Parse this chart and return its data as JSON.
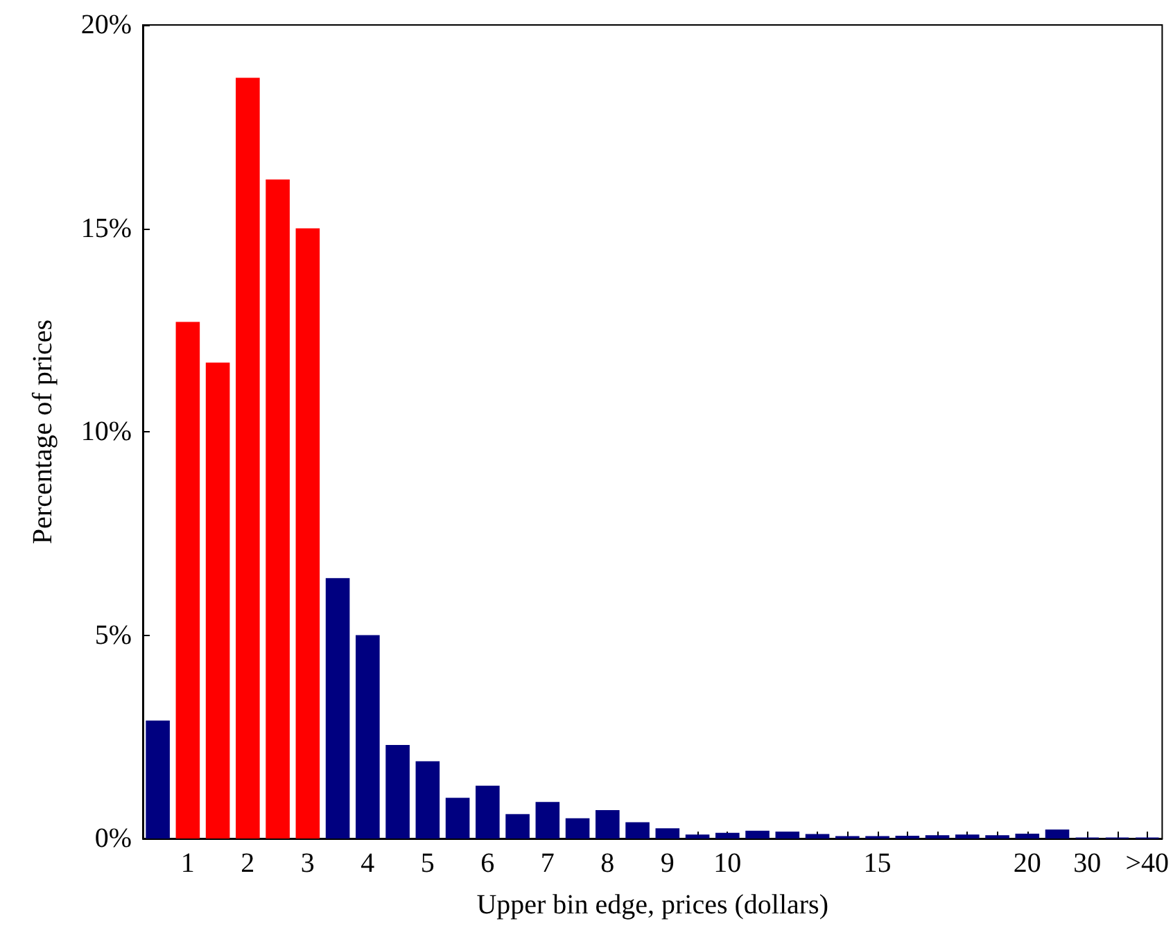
{
  "chart_data": {
    "type": "bar",
    "xlabel": "Upper bin edge, prices (dollars)",
    "ylabel": "Percentage of prices",
    "categories": [
      null,
      "1",
      null,
      "2",
      null,
      "3",
      null,
      "4",
      null,
      "5",
      null,
      "6",
      null,
      "7",
      null,
      "8",
      null,
      "9",
      null,
      "10",
      null,
      null,
      null,
      null,
      "15",
      null,
      null,
      null,
      null,
      "20",
      null,
      "30",
      null,
      ">40"
    ],
    "values": [
      2.9,
      12.7,
      11.7,
      18.7,
      16.2,
      15.0,
      6.4,
      5.0,
      2.3,
      1.9,
      1.0,
      1.3,
      0.6,
      0.9,
      0.5,
      0.7,
      0.4,
      0.25,
      0.1,
      0.14,
      0.19,
      0.17,
      0.11,
      0.06,
      0.06,
      0.07,
      0.08,
      0.1,
      0.08,
      0.12,
      0.22,
      0.02,
      0.02,
      0.02
    ],
    "colors": [
      "#000080",
      "#ff0000",
      "#ff0000",
      "#ff0000",
      "#ff0000",
      "#ff0000",
      "#000080",
      "#000080",
      "#000080",
      "#000080",
      "#000080",
      "#000080",
      "#000080",
      "#000080",
      "#000080",
      "#000080",
      "#000080",
      "#000080",
      "#000080",
      "#000080",
      "#000080",
      "#000080",
      "#000080",
      "#000080",
      "#000080",
      "#000080",
      "#000080",
      "#000080",
      "#000080",
      "#000080",
      "#000080",
      "#000080",
      "#000080",
      "#000080"
    ],
    "ylim": [
      0,
      20
    ],
    "yticks": [
      {
        "value": 0,
        "label": "0%"
      },
      {
        "value": 5,
        "label": "5%"
      },
      {
        "value": 10,
        "label": "10%"
      },
      {
        "value": 15,
        "label": "15%"
      },
      {
        "value": 20,
        "label": "20%"
      }
    ],
    "grid": false
  }
}
